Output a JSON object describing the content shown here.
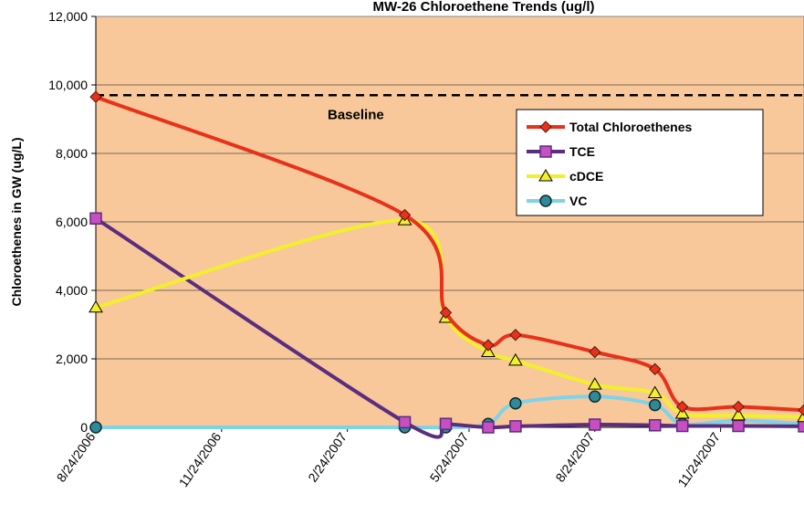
{
  "chart_data": {
    "type": "line",
    "title": "MW-26 Chloroethene Trends (ug/l)",
    "ylabel": "Chloroethenes in GW (ug/L)",
    "xlabel": "",
    "ylim": [
      0,
      12000
    ],
    "yticks": [
      0,
      2000,
      4000,
      6000,
      8000,
      10000,
      12000
    ],
    "ytick_labels": [
      "0",
      "2,000",
      "4,000",
      "6,000",
      "8,000",
      "10,000",
      "12,000"
    ],
    "xlim": [
      "2006-08-24",
      "2008-01-24"
    ],
    "xticks": [
      "2006-08-24",
      "2006-11-24",
      "2007-02-24",
      "2007-05-24",
      "2007-08-24",
      "2007-11-24"
    ],
    "xtick_labels": [
      "8/24/2006",
      "11/24/2006",
      "2/24/2007",
      "5/24/2007",
      "8/24/2007",
      "11/24/2007"
    ],
    "grid": true,
    "legend_position": "upper-right",
    "background_color": "#F8C89A",
    "baseline": {
      "label": "Baseline",
      "value": 9700
    },
    "x": [
      "2006-08-24",
      "2007-04-07",
      "2007-05-07",
      "2007-06-07",
      "2007-06-27",
      "2007-08-24",
      "2007-10-07",
      "2007-10-27",
      "2007-12-07",
      "2008-01-24"
    ],
    "series": [
      {
        "name": "Total Chloroethenes",
        "color": "#E8311B",
        "marker": "diamond",
        "values": [
          9650,
          6200,
          3350,
          2400,
          2700,
          2200,
          1700,
          600,
          600,
          500
        ]
      },
      {
        "name": "TCE",
        "color": "#5B2D7E",
        "marker": "square",
        "values": [
          6100,
          150,
          100,
          0,
          30,
          80,
          60,
          40,
          40,
          30
        ]
      },
      {
        "name": "cDCE",
        "color": "#F2EF2E",
        "marker": "triangle",
        "values": [
          3500,
          6050,
          3200,
          2200,
          1950,
          1250,
          1000,
          400,
          350,
          300
        ]
      },
      {
        "name": "VC",
        "color": "#7FD3E8",
        "marker": "circle",
        "values": [
          0,
          0,
          0,
          100,
          700,
          900,
          650,
          100,
          200,
          100
        ]
      }
    ]
  }
}
